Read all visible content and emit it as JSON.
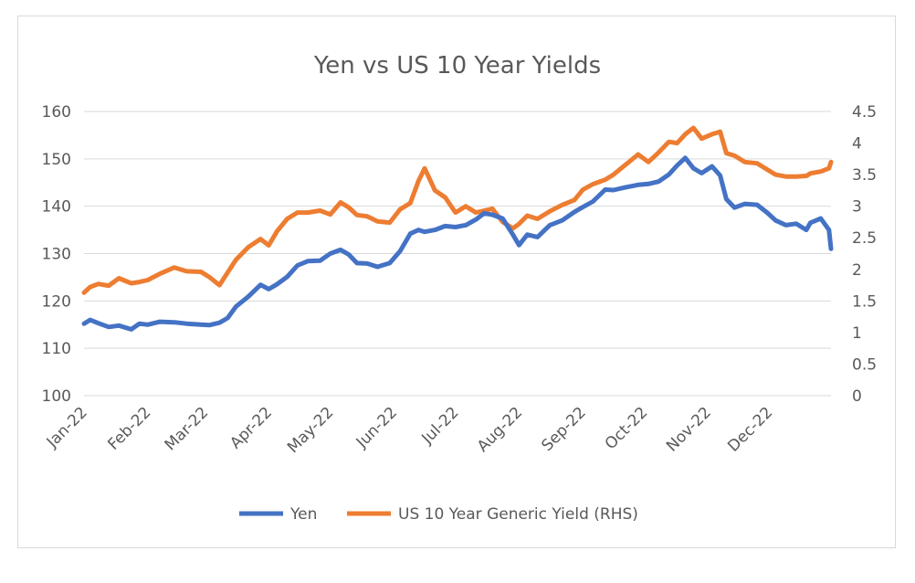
{
  "chart_data": {
    "type": "line",
    "title": "Yen vs US 10 Year Yields",
    "xlabel": "",
    "ylabel": "",
    "grid": true,
    "legend_position": "bottom",
    "x_tick_labels": [
      "Jan-22",
      "Feb-22",
      "Mar-22",
      "Apr-22",
      "May-22",
      "Jun-22",
      "Jul-22",
      "Aug-22",
      "Sep-22",
      "Oct-22",
      "Nov-22",
      "Dec-22"
    ],
    "y_left": {
      "ylim": [
        100,
        160
      ],
      "ticks": [
        "100",
        "110",
        "120",
        "130",
        "140",
        "150",
        "160"
      ]
    },
    "y_right": {
      "ylim": [
        0,
        4.5
      ],
      "ticks": [
        "0",
        "0.5",
        "1",
        "1.5",
        "2",
        "2.5",
        "3",
        "3.5",
        "4",
        "4.5"
      ]
    },
    "series": [
      {
        "name": "Yen",
        "axis": "left",
        "color": "#4472c4",
        "x": [
          "2022-01-01",
          "2022-01-04",
          "2022-01-08",
          "2022-01-13",
          "2022-01-18",
          "2022-01-24",
          "2022-01-28",
          "2022-02-01",
          "2022-02-07",
          "2022-02-14",
          "2022-02-20",
          "2022-02-27",
          "2022-03-03",
          "2022-03-08",
          "2022-03-12",
          "2022-03-16",
          "2022-03-22",
          "2022-03-28",
          "2022-04-01",
          "2022-04-05",
          "2022-04-10",
          "2022-04-15",
          "2022-04-20",
          "2022-04-26",
          "2022-05-01",
          "2022-05-06",
          "2022-05-10",
          "2022-05-14",
          "2022-05-19",
          "2022-05-24",
          "2022-05-30",
          "2022-06-04",
          "2022-06-09",
          "2022-06-13",
          "2022-06-16",
          "2022-06-21",
          "2022-06-26",
          "2022-07-01",
          "2022-07-06",
          "2022-07-11",
          "2022-07-15",
          "2022-07-19",
          "2022-07-24",
          "2022-07-29",
          "2022-08-01",
          "2022-08-05",
          "2022-08-10",
          "2022-08-16",
          "2022-08-22",
          "2022-08-28",
          "2022-09-01",
          "2022-09-06",
          "2022-09-12",
          "2022-09-16",
          "2022-09-22",
          "2022-09-28",
          "2022-10-03",
          "2022-10-08",
          "2022-10-13",
          "2022-10-17",
          "2022-10-21",
          "2022-10-25",
          "2022-10-29",
          "2022-11-03",
          "2022-11-07",
          "2022-11-10",
          "2022-11-14",
          "2022-11-19",
          "2022-11-25",
          "2022-11-30",
          "2022-12-04",
          "2022-12-09",
          "2022-12-14",
          "2022-12-19",
          "2022-12-21",
          "2022-12-26",
          "2022-12-30",
          "2022-12-31"
        ],
        "values": [
          115.2,
          116.0,
          115.3,
          114.5,
          114.8,
          114.0,
          115.2,
          115.0,
          115.6,
          115.5,
          115.2,
          115.0,
          114.9,
          115.4,
          116.4,
          118.8,
          120.9,
          123.4,
          122.5,
          123.5,
          125.1,
          127.5,
          128.4,
          128.5,
          130.0,
          130.8,
          129.8,
          128.0,
          127.9,
          127.2,
          128.0,
          130.5,
          134.2,
          135.0,
          134.6,
          135.0,
          135.8,
          135.6,
          136.0,
          137.2,
          138.5,
          138.2,
          137.4,
          134.0,
          131.8,
          134.0,
          133.5,
          136.0,
          137.0,
          138.8,
          139.8,
          141.0,
          143.5,
          143.4,
          144.0,
          144.5,
          144.7,
          145.2,
          146.7,
          148.6,
          150.2,
          148.0,
          147.0,
          148.4,
          146.5,
          141.5,
          139.7,
          140.5,
          140.3,
          138.6,
          137.0,
          136.0,
          136.3,
          135.0,
          136.5,
          137.4,
          135.0,
          131.0
        ]
      },
      {
        "name": "US 10 Year Generic Yield (RHS)",
        "axis": "right",
        "color": "#ed7d31",
        "x": [
          "2022-01-01",
          "2022-01-04",
          "2022-01-08",
          "2022-01-13",
          "2022-01-18",
          "2022-01-24",
          "2022-01-28",
          "2022-02-01",
          "2022-02-07",
          "2022-02-14",
          "2022-02-20",
          "2022-02-27",
          "2022-03-03",
          "2022-03-08",
          "2022-03-12",
          "2022-03-16",
          "2022-03-22",
          "2022-03-28",
          "2022-04-01",
          "2022-04-05",
          "2022-04-10",
          "2022-04-15",
          "2022-04-20",
          "2022-04-26",
          "2022-05-01",
          "2022-05-06",
          "2022-05-10",
          "2022-05-14",
          "2022-05-19",
          "2022-05-24",
          "2022-05-30",
          "2022-06-04",
          "2022-06-09",
          "2022-06-13",
          "2022-06-16",
          "2022-06-21",
          "2022-06-26",
          "2022-07-01",
          "2022-07-06",
          "2022-07-11",
          "2022-07-15",
          "2022-07-19",
          "2022-07-24",
          "2022-07-29",
          "2022-08-01",
          "2022-08-05",
          "2022-08-10",
          "2022-08-16",
          "2022-08-22",
          "2022-08-28",
          "2022-09-01",
          "2022-09-06",
          "2022-09-12",
          "2022-09-16",
          "2022-09-22",
          "2022-09-28",
          "2022-10-03",
          "2022-10-08",
          "2022-10-13",
          "2022-10-17",
          "2022-10-21",
          "2022-10-25",
          "2022-10-29",
          "2022-11-03",
          "2022-11-07",
          "2022-11-10",
          "2022-11-14",
          "2022-11-19",
          "2022-11-25",
          "2022-11-30",
          "2022-12-04",
          "2022-12-09",
          "2022-12-14",
          "2022-12-19",
          "2022-12-21",
          "2022-12-26",
          "2022-12-30",
          "2022-12-31"
        ],
        "values": [
          1.63,
          1.72,
          1.77,
          1.74,
          1.86,
          1.78,
          1.8,
          1.83,
          1.93,
          2.03,
          1.97,
          1.96,
          1.88,
          1.75,
          1.95,
          2.15,
          2.35,
          2.48,
          2.38,
          2.6,
          2.8,
          2.9,
          2.9,
          2.93,
          2.87,
          3.06,
          2.98,
          2.86,
          2.84,
          2.76,
          2.74,
          2.95,
          3.05,
          3.4,
          3.6,
          3.25,
          3.14,
          2.9,
          3.0,
          2.9,
          2.93,
          2.96,
          2.75,
          2.65,
          2.72,
          2.85,
          2.8,
          2.92,
          3.02,
          3.1,
          3.26,
          3.35,
          3.42,
          3.5,
          3.66,
          3.82,
          3.7,
          3.85,
          4.02,
          4.0,
          4.14,
          4.24,
          4.07,
          4.14,
          4.18,
          3.84,
          3.8,
          3.7,
          3.68,
          3.58,
          3.5,
          3.47,
          3.47,
          3.48,
          3.52,
          3.55,
          3.6,
          3.7
        ]
      }
    ]
  }
}
